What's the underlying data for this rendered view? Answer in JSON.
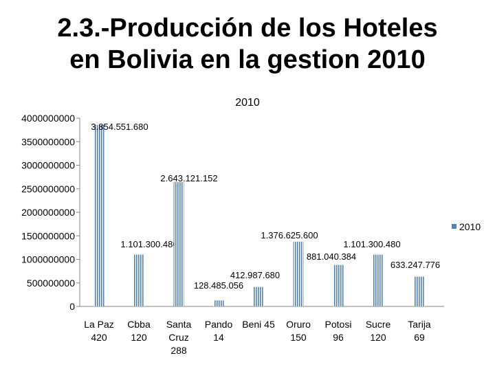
{
  "slide": {
    "title_line1": "2.3.-Producción de los Hoteles",
    "title_line2": "en Bolivia en la gestion 2010"
  },
  "chart_data": {
    "type": "bar",
    "title": "2010",
    "categories": [
      [
        "La Paz",
        "420"
      ],
      [
        "Cbba",
        "120"
      ],
      [
        "Santa",
        "Cruz",
        "288"
      ],
      [
        "Pando",
        "14"
      ],
      [
        "Beni 45"
      ],
      [
        "Oruro",
        "150"
      ],
      [
        "Potosi",
        "96"
      ],
      [
        "Sucre",
        "120"
      ],
      [
        "Tarija",
        "69"
      ]
    ],
    "series": [
      {
        "name": "2010",
        "color": "#4F81BD",
        "values": [
          3854551680,
          1101300480,
          2643121152,
          128485056,
          412987680,
          1376625600,
          881040384,
          1101300480,
          633247776
        ],
        "labels": [
          "3.854.551.680",
          "1.101.300.480",
          "2.643.121.152",
          "128.485.056",
          "412.987.680",
          "1.376.625.600",
          "881.040.384",
          "1.101.300.480",
          "633.247.776"
        ]
      }
    ],
    "yticks": [
      "0",
      "500000000",
      "1000000000",
      "1500000000",
      "2000000000",
      "2500000000",
      "3000000000",
      "3500000000",
      "4000000000"
    ],
    "ylim": [
      0,
      4000000000
    ],
    "grid": false,
    "legend_position": "right"
  }
}
